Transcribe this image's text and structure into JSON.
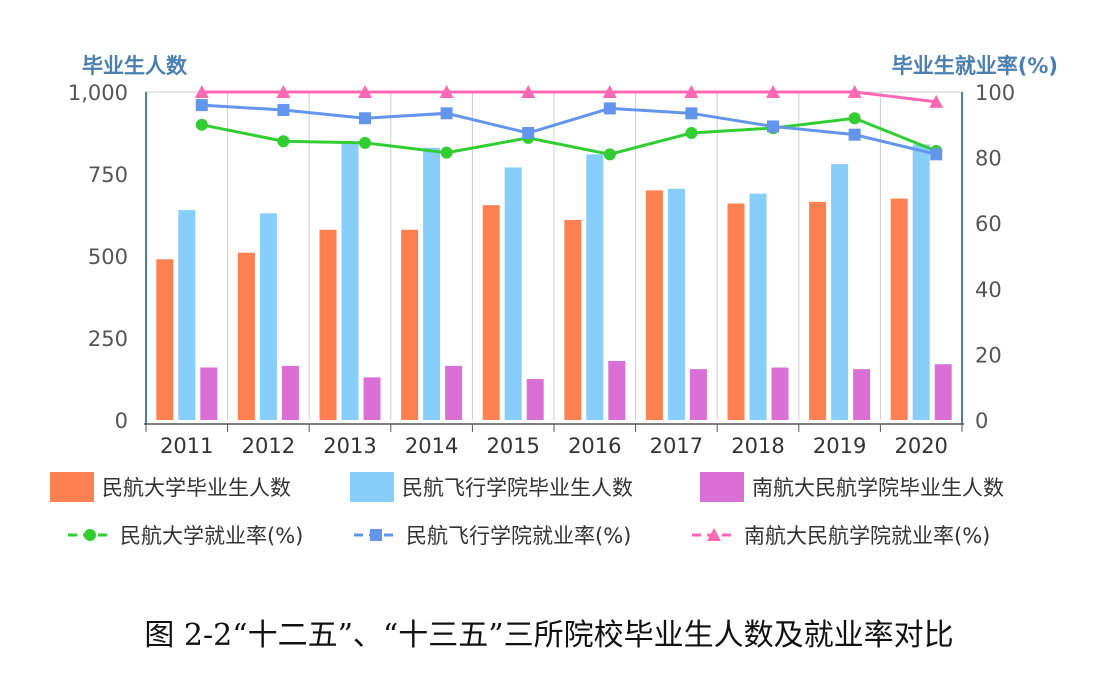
{
  "chart_data": {
    "type": "bar",
    "categories": [
      "2011",
      "2012",
      "2013",
      "2014",
      "2015",
      "2016",
      "2017",
      "2018",
      "2019",
      "2020"
    ],
    "left_axis": {
      "label": "毕业生人数",
      "ylim": [
        0,
        1000
      ],
      "ticks": [
        "0",
        "250",
        "500",
        "750",
        "1,000"
      ]
    },
    "right_axis": {
      "label": "毕业生就业率(%)",
      "ylim": [
        0,
        100
      ],
      "ticks": [
        "0",
        "20",
        "40",
        "60",
        "80",
        "100"
      ]
    },
    "bar_series": [
      {
        "name": "民航大学毕业生人数",
        "color": "#FF8050",
        "values": [
          490,
          510,
          580,
          580,
          655,
          610,
          700,
          660,
          665,
          675
        ]
      },
      {
        "name": "民航飞行学院毕业生人数",
        "color": "#87CEFA",
        "values": [
          640,
          630,
          845,
          830,
          770,
          810,
          705,
          690,
          780,
          840
        ]
      },
      {
        "name": "南航大民航学院毕业生人数",
        "color": "#DA70D6",
        "values": [
          160,
          165,
          130,
          165,
          125,
          180,
          155,
          160,
          155,
          170
        ]
      }
    ],
    "line_series": [
      {
        "name": "民航大学就业率(%)",
        "color": "#32CD32",
        "marker": "circle",
        "values": [
          90,
          85,
          84.5,
          81.5,
          86,
          81,
          87.5,
          89,
          92,
          82
        ]
      },
      {
        "name": "民航飞行学院就业率(%)",
        "color": "#6495ED",
        "marker": "square",
        "values": [
          96,
          94.5,
          92,
          93.5,
          87.5,
          95,
          93.5,
          89.5,
          87,
          81
        ]
      },
      {
        "name": "南航大民航学院就业率(%)",
        "color": "#FF69B4",
        "marker": "triangle",
        "values": [
          100,
          100,
          100,
          100,
          100,
          100,
          100,
          100,
          100,
          97
        ]
      }
    ],
    "grid": true,
    "legend_position": "bottom"
  },
  "caption": "图 2-2“十二五”、“十三五”三所院校毕业生人数及就业率对比"
}
